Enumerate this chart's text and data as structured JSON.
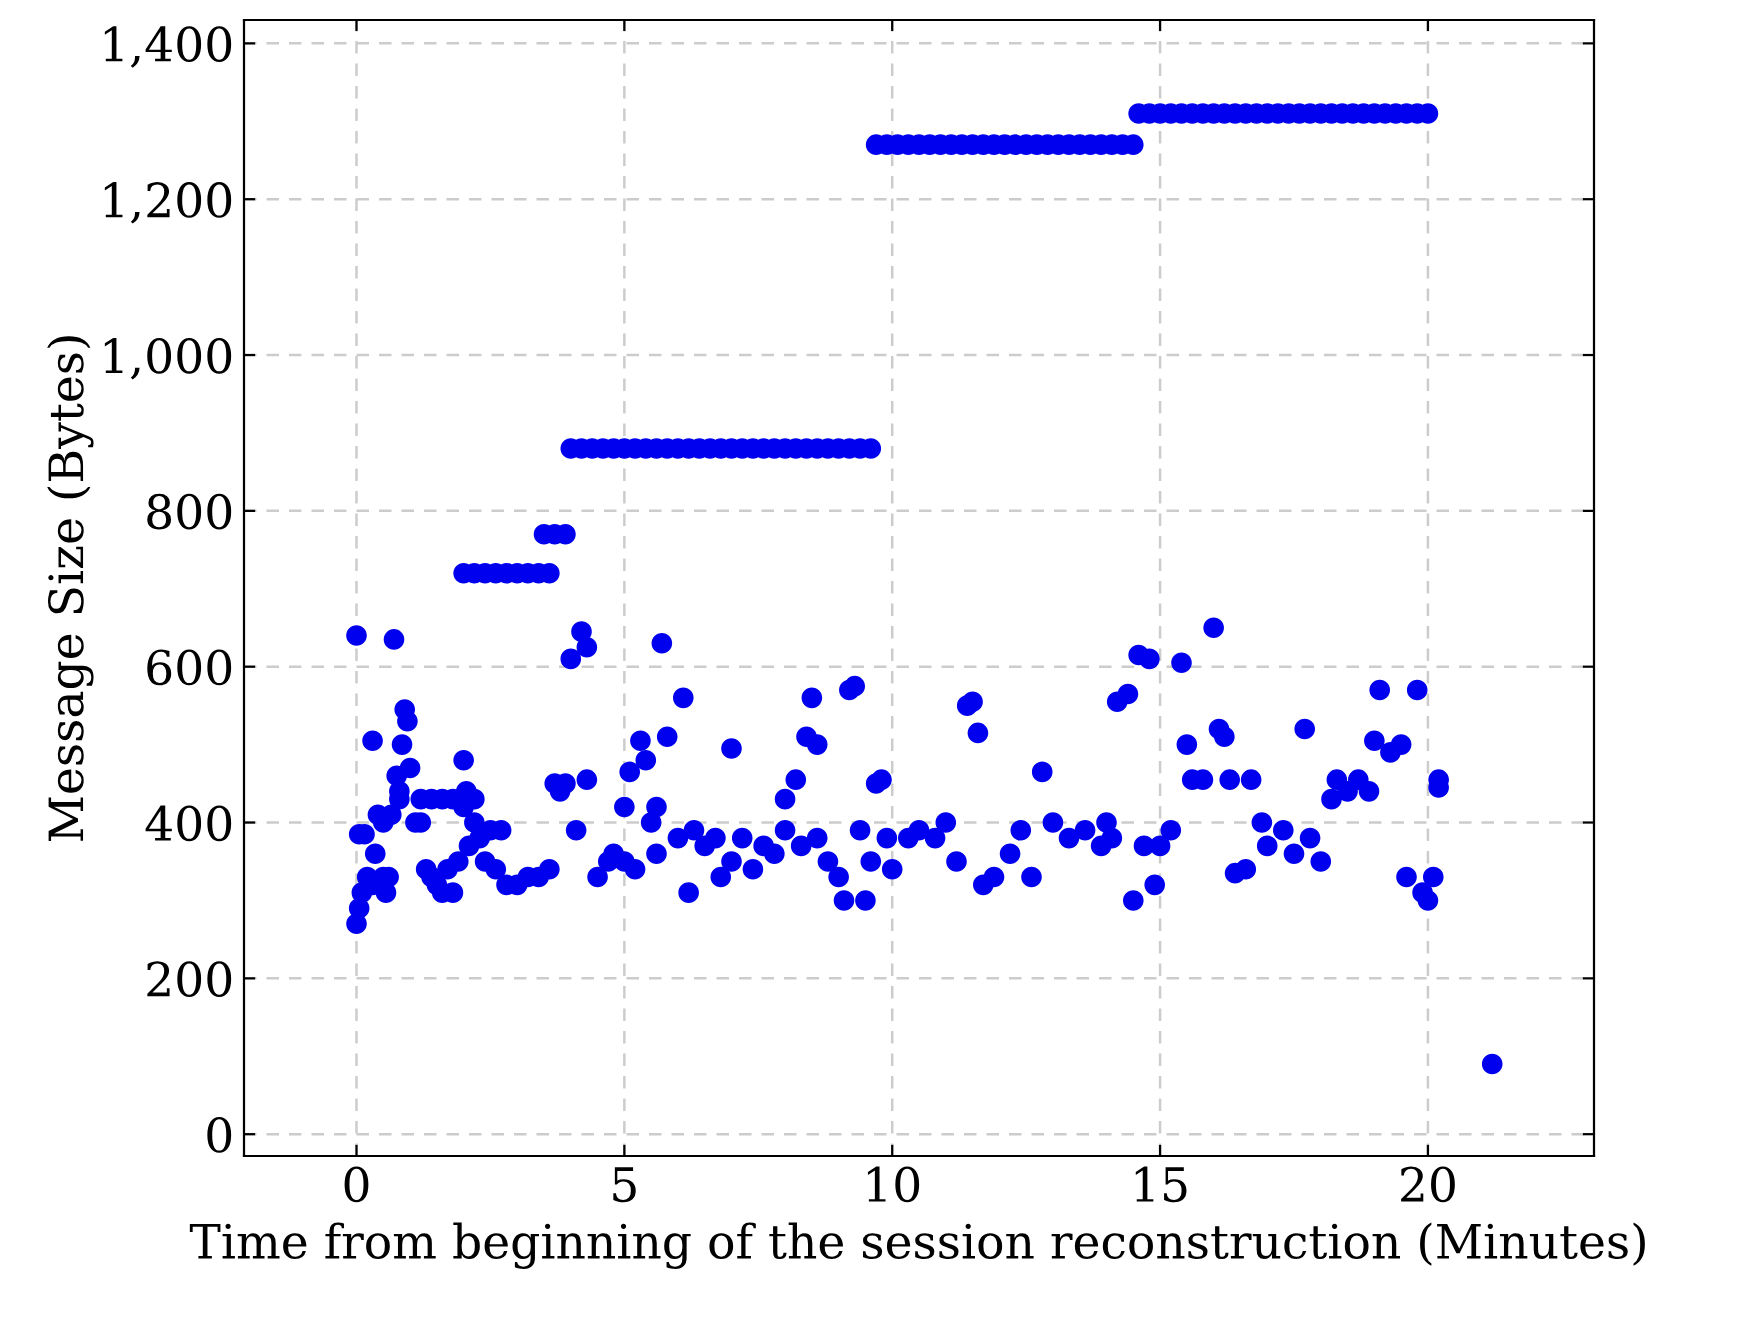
{
  "chart_data": {
    "type": "scatter",
    "xlabel": "Time from beginning of the session reconstruction (Minutes)",
    "ylabel": "Message Size (Bytes)",
    "xlim": [
      -2.1,
      23.1
    ],
    "xticks": [
      0,
      5,
      10,
      15,
      20
    ],
    "ylim": [
      -28,
      1430
    ],
    "yticks": [
      0,
      200,
      400,
      600,
      800,
      {
        "value": 1000,
        "label": "1,000"
      },
      {
        "value": 1200,
        "label": "1,200"
      },
      {
        "value": 1400,
        "label": "1,400"
      }
    ],
    "grid": true,
    "marker": "circle",
    "series": [
      {
        "color": "#0000ee",
        "x": [
          0.0,
          0.05,
          0.1,
          0.05,
          0.15,
          0.0,
          0.2,
          0.3,
          0.35,
          0.3,
          0.4,
          0.5,
          0.5,
          0.55,
          0.6,
          0.65,
          0.7,
          0.75,
          0.8,
          0.85,
          0.9,
          0.95,
          1.0,
          1.1,
          1.2,
          1.3,
          1.4,
          1.5,
          1.6,
          1.7,
          1.8,
          1.9,
          2.0,
          2.0,
          2.05,
          2.1,
          2.2,
          2.3,
          2.4,
          2.5,
          2.6,
          2.7,
          2.8,
          3.0,
          3.2,
          3.4,
          3.6,
          3.7,
          3.8,
          3.9,
          4.0,
          4.1,
          4.2,
          4.3,
          4.3,
          4.5,
          4.7,
          4.8,
          5.0,
          5.0,
          5.1,
          5.2,
          5.3,
          5.4,
          5.5,
          5.6,
          5.6,
          5.7,
          5.8,
          6.0,
          6.1,
          6.2,
          6.3,
          6.5,
          6.7,
          6.8,
          7.0,
          7.0,
          7.2,
          7.4,
          7.6,
          7.8,
          8.0,
          8.0,
          8.2,
          8.3,
          8.4,
          8.5,
          8.6,
          8.6,
          8.8,
          9.0,
          9.1,
          9.2,
          9.3,
          9.4,
          9.5,
          9.6,
          9.7,
          9.8,
          9.9,
          10.0,
          10.3,
          10.5,
          10.8,
          11.0,
          11.2,
          11.4,
          11.5,
          11.6,
          11.7,
          11.9,
          12.2,
          12.4,
          12.6,
          12.8,
          13.0,
          13.3,
          13.6,
          13.9,
          14.0,
          14.1,
          14.2,
          14.4,
          14.5,
          14.6,
          14.7,
          14.8,
          14.9,
          15.0,
          15.2,
          15.4,
          15.5,
          15.6,
          15.8,
          16.0,
          16.1,
          16.2,
          16.3,
          16.4,
          16.6,
          16.7,
          16.9,
          17.0,
          17.3,
          17.5,
          17.7,
          17.8,
          18.0,
          18.2,
          18.3,
          18.5,
          18.7,
          18.9,
          19.0,
          19.1,
          19.3,
          19.5,
          19.6,
          19.8,
          19.9,
          20.0,
          20.1,
          20.2,
          20.2,
          21.2,
          0.8,
          1.2,
          1.4,
          1.6,
          1.8,
          2.2,
          2.0,
          2.2,
          2.4,
          2.6,
          2.8,
          3.0,
          3.2,
          3.4,
          3.6,
          3.5,
          3.7,
          3.9,
          4.0,
          4.2,
          4.4,
          4.6,
          4.8,
          5.0,
          5.2,
          5.4,
          5.6,
          5.8,
          6.0,
          6.2,
          6.4,
          6.6,
          6.8,
          7.0,
          7.2,
          7.4,
          7.6,
          7.8,
          8.0,
          8.2,
          8.4,
          8.6,
          8.8,
          9.0,
          9.2,
          9.4,
          9.6,
          9.7,
          9.9,
          10.1,
          10.3,
          10.5,
          10.7,
          10.9,
          11.1,
          11.3,
          11.5,
          11.7,
          11.9,
          12.1,
          12.3,
          12.5,
          12.7,
          12.9,
          13.1,
          13.3,
          13.5,
          13.7,
          13.9,
          14.1,
          14.3,
          14.5,
          14.6,
          14.8,
          15.0,
          15.2,
          15.4,
          15.6,
          15.8,
          16.0,
          16.2,
          16.4,
          16.6,
          16.8,
          17.0,
          17.2,
          17.4,
          17.6,
          17.8,
          18.0,
          18.2,
          18.4,
          18.6,
          18.8,
          19.0,
          19.2,
          19.4,
          19.6,
          19.8,
          20.0
        ],
        "values": [
          270,
          290,
          310,
          385,
          385,
          640,
          330,
          505,
          360,
          320,
          410,
          400,
          330,
          310,
          330,
          410,
          635,
          460,
          440,
          500,
          545,
          530,
          470,
          400,
          400,
          340,
          330,
          320,
          310,
          340,
          310,
          350,
          420,
          480,
          440,
          370,
          400,
          380,
          350,
          390,
          340,
          390,
          320,
          320,
          330,
          330,
          340,
          450,
          440,
          450,
          610,
          390,
          645,
          455,
          625,
          330,
          350,
          360,
          420,
          350,
          465,
          340,
          505,
          480,
          400,
          420,
          360,
          630,
          510,
          380,
          560,
          310,
          390,
          370,
          380,
          330,
          495,
          350,
          380,
          340,
          370,
          360,
          390,
          430,
          455,
          370,
          510,
          560,
          500,
          380,
          350,
          330,
          300,
          570,
          575,
          390,
          300,
          350,
          450,
          455,
          380,
          340,
          380,
          390,
          380,
          400,
          350,
          550,
          555,
          515,
          320,
          330,
          360,
          390,
          330,
          465,
          400,
          380,
          390,
          370,
          400,
          380,
          555,
          565,
          300,
          615,
          370,
          610,
          320,
          370,
          390,
          605,
          500,
          455,
          455,
          650,
          520,
          510,
          455,
          335,
          340,
          455,
          400,
          370,
          390,
          360,
          520,
          380,
          350,
          430,
          455,
          440,
          455,
          440,
          505,
          570,
          490,
          500,
          330,
          570,
          310,
          300,
          330,
          445,
          455,
          90,
          430,
          430,
          430,
          430,
          430,
          430,
          720,
          720,
          720,
          720,
          720,
          720,
          720,
          720,
          720,
          770,
          770,
          770,
          880,
          880,
          880,
          880,
          880,
          880,
          880,
          880,
          880,
          880,
          880,
          880,
          880,
          880,
          880,
          880,
          880,
          880,
          880,
          880,
          880,
          880,
          880,
          880,
          880,
          880,
          880,
          880,
          880,
          1270,
          1270,
          1270,
          1270,
          1270,
          1270,
          1270,
          1270,
          1270,
          1270,
          1270,
          1270,
          1270,
          1270,
          1270,
          1270,
          1270,
          1270,
          1270,
          1270,
          1270,
          1270,
          1270,
          1270,
          1270,
          1310,
          1310,
          1310,
          1310,
          1310,
          1310,
          1310,
          1310,
          1310,
          1310,
          1310,
          1310,
          1310,
          1310,
          1310,
          1310,
          1310,
          1310,
          1310,
          1310,
          1310,
          1310,
          1310,
          1310,
          1310,
          1310,
          1310,
          1310
        ]
      }
    ]
  }
}
